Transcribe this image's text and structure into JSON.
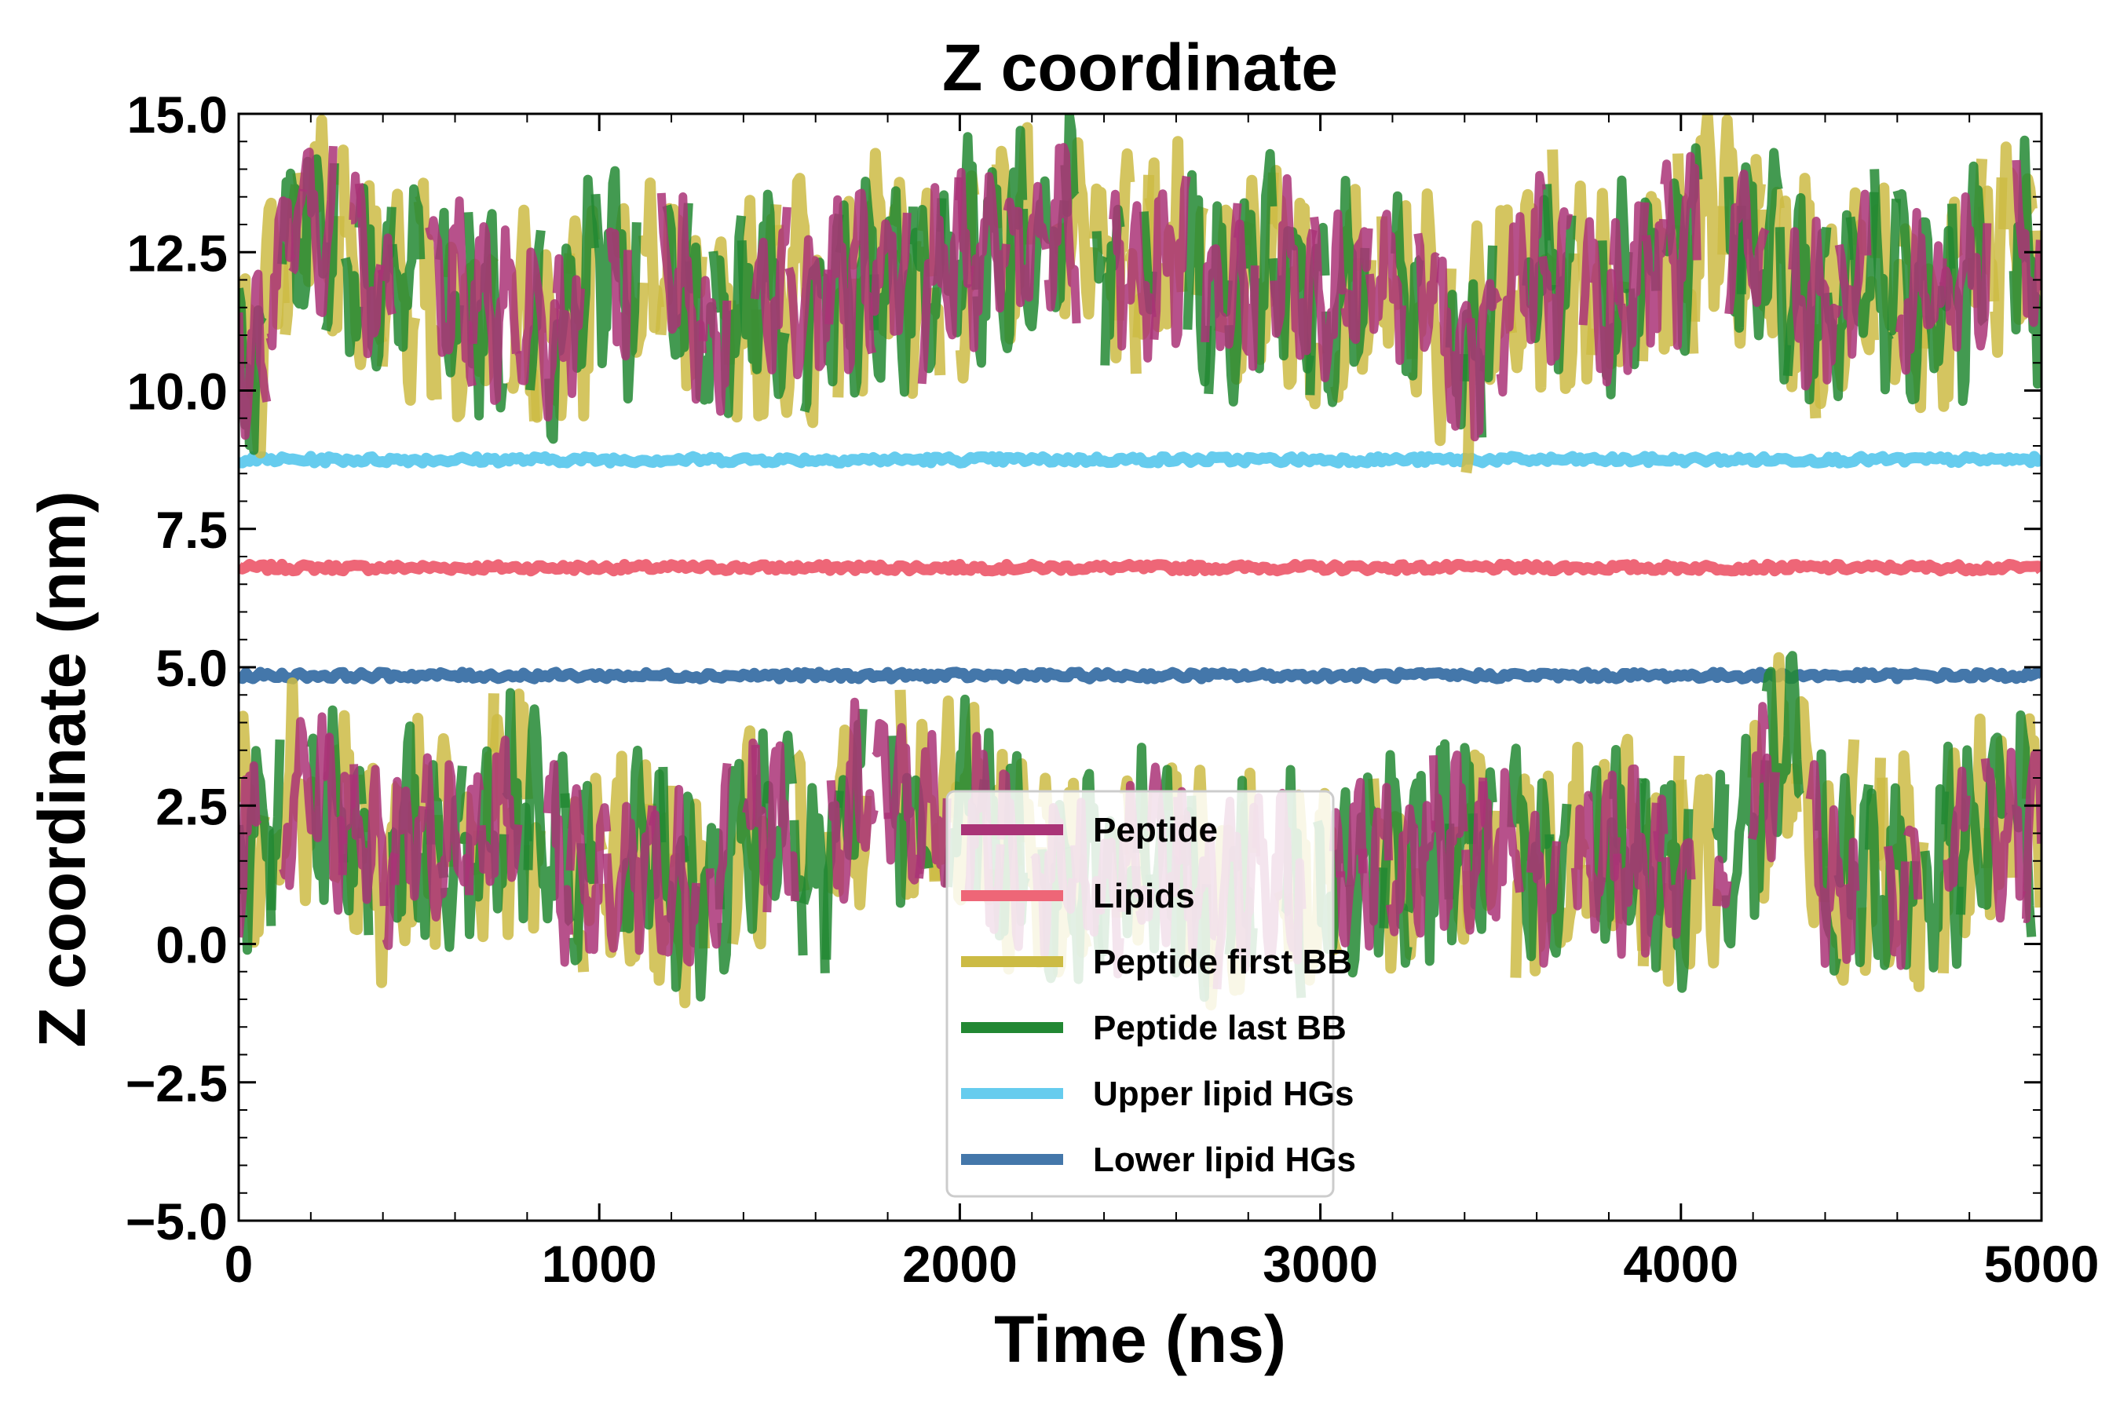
{
  "chart_data": {
    "type": "line",
    "title": "Z coordinate",
    "xlabel": "Time (ns)",
    "ylabel": "Z coordinate (nm)",
    "xlim": [
      0,
      5000
    ],
    "ylim": [
      -5.0,
      15.0
    ],
    "xticks": [
      0,
      1000,
      2000,
      3000,
      4000,
      5000
    ],
    "xtick_labels": [
      "0",
      "1000",
      "2000",
      "3000",
      "4000",
      "5000"
    ],
    "yticks": [
      -5.0,
      -2.5,
      0.0,
      2.5,
      5.0,
      7.5,
      10.0,
      12.5,
      15.0
    ],
    "ytick_labels": [
      "−5.0",
      "−2.5",
      "0.0",
      "2.5",
      "5.0",
      "7.5",
      "10.0",
      "12.5",
      "15.0"
    ],
    "grid": false,
    "legend_position": "lower-center",
    "series": [
      {
        "name": "Peptide",
        "color": "#aa3377",
        "style": "segmented",
        "upper_band": {
          "x": [
            0,
            40,
            120,
            200,
            300,
            400,
            500,
            900,
            1000,
            1100,
            1200,
            1300,
            1400,
            1500,
            1600,
            1700,
            1800,
            1900,
            2000,
            2100,
            2200,
            2300,
            2400,
            2500,
            2600,
            2700,
            2800,
            2900,
            3000,
            3100,
            3300,
            3400,
            3500,
            3600,
            3700,
            3800,
            3900,
            4000,
            4100,
            4200,
            4300,
            4400,
            4500,
            4600,
            4700,
            4800,
            4900,
            5000
          ],
          "y": [
            11.0,
            10.0,
            12.8,
            13.2,
            12.4,
            11.8,
            12.0,
            11.0,
            12.4,
            11.6,
            12.2,
            11.0,
            11.4,
            12.0,
            11.6,
            12.0,
            12.2,
            11.8,
            12.4,
            12.6,
            12.8,
            13.0,
            12.4,
            12.0,
            12.6,
            11.4,
            12.0,
            12.4,
            11.2,
            12.0,
            11.8,
            10.4,
            11.6,
            12.4,
            11.8,
            11.4,
            12.2,
            12.6,
            13.0,
            12.6,
            12.0,
            11.4,
            12.2,
            11.8,
            11.4,
            12.0,
            12.8,
            12.2
          ]
        },
        "lower_band": {
          "x": [
            0,
            100,
            200,
            300,
            400,
            500,
            600,
            700,
            800,
            900,
            1000,
            1100,
            1200,
            1300,
            1400,
            1500,
            1600,
            1700,
            1800,
            1900,
            2000,
            2100,
            2200,
            2300,
            2400,
            2500,
            2600,
            2700,
            2800,
            2900,
            3000,
            3100,
            3200,
            3300,
            3500,
            3600,
            3700,
            3800,
            3900,
            4000,
            4100,
            4200,
            4300,
            4400,
            4500,
            4600,
            4700,
            4800,
            4900,
            5000
          ],
          "y": [
            1.8,
            2.4,
            2.8,
            2.2,
            1.4,
            2.0,
            1.6,
            2.2,
            2.6,
            1.4,
            1.0,
            1.6,
            1.2,
            1.0,
            2.0,
            2.4,
            1.2,
            2.6,
            2.8,
            2.2,
            2.6,
            1.8,
            1.4,
            1.2,
            1.0,
            1.6,
            1.4,
            0.8,
            1.2,
            1.0,
            1.0,
            1.4,
            1.6,
            1.8,
            1.8,
            1.2,
            1.4,
            1.6,
            1.4,
            1.2,
            1.6,
            2.4,
            3.8,
            1.2,
            1.4,
            1.0,
            1.6,
            1.8,
            2.0,
            2.0
          ]
        }
      },
      {
        "name": "Lipids",
        "color": "#ee6677",
        "style": "flat",
        "y": 6.8
      },
      {
        "name": "Peptide first BB",
        "color": "#ccbb44",
        "style": "segmented"
      },
      {
        "name": "Peptide last BB",
        "color": "#228833",
        "style": "segmented"
      },
      {
        "name": "Upper lipid HGs",
        "color": "#66ccee",
        "style": "flat",
        "y": 8.75
      },
      {
        "name": "Lower lipid HGs",
        "color": "#4477aa",
        "style": "flat",
        "y": 4.85
      }
    ]
  }
}
